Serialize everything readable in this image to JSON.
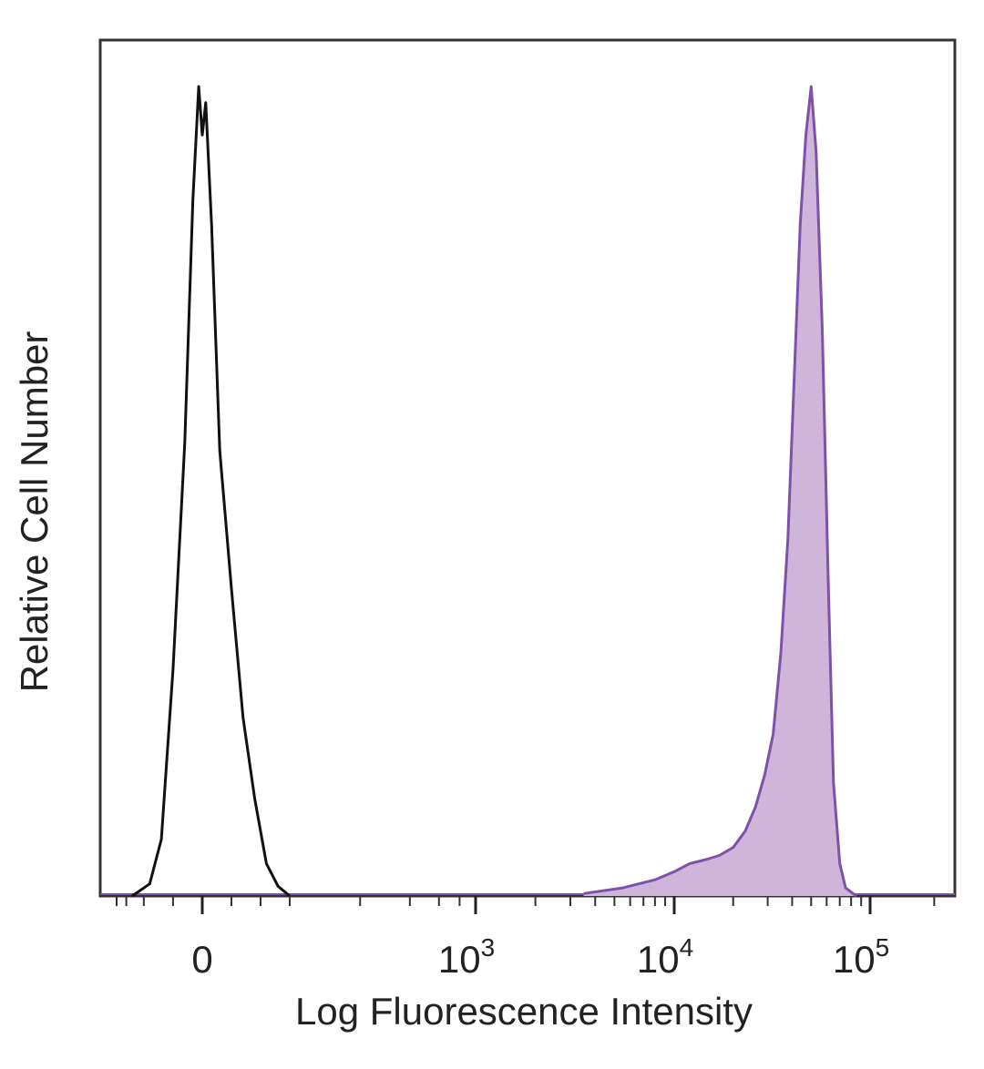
{
  "chart_data": {
    "type": "area",
    "title": "",
    "xlabel": "Log Fluorescence Intensity",
    "ylabel": "Relative Cell Number",
    "x_scale": "biexponential",
    "xlim": [
      -100,
      250000
    ],
    "ylim": [
      0,
      100
    ],
    "grid": false,
    "legend": "none",
    "x_ticks": [
      {
        "value": 0,
        "base": "0",
        "exp": ""
      },
      {
        "value": 1000,
        "base": "10",
        "exp": "3"
      },
      {
        "value": 10000,
        "base": "10",
        "exp": "4"
      },
      {
        "value": 100000,
        "base": "10",
        "exp": "5"
      }
    ],
    "series": [
      {
        "style": "outline",
        "color": "#111111",
        "x": [
          -60,
          -45,
          -35,
          -25,
          -15,
          -8,
          -3,
          0,
          3,
          8,
          15,
          25,
          35,
          45,
          55,
          65,
          75
        ],
        "y": [
          0,
          1.5,
          7,
          28,
          56,
          86,
          100,
          94,
          98,
          83,
          55,
          38,
          22,
          12,
          4,
          1.2,
          0
        ]
      },
      {
        "style": "filled",
        "color": "#7d52a8",
        "fill": "#cfb5d9",
        "x": [
          3500,
          5500,
          8000,
          10000,
          12000,
          14500,
          17000,
          20000,
          23000,
          26000,
          29000,
          32000,
          35000,
          38000,
          41000,
          44000,
          47000,
          50000,
          53000,
          57000,
          61000,
          65000,
          70000,
          75000,
          85000
        ],
        "y": [
          0.3,
          1,
          2,
          3,
          4,
          4.5,
          5,
          6,
          8,
          11,
          15,
          20,
          30,
          44,
          64,
          83,
          94,
          100,
          92,
          70,
          40,
          14,
          4,
          1,
          0
        ]
      }
    ]
  }
}
